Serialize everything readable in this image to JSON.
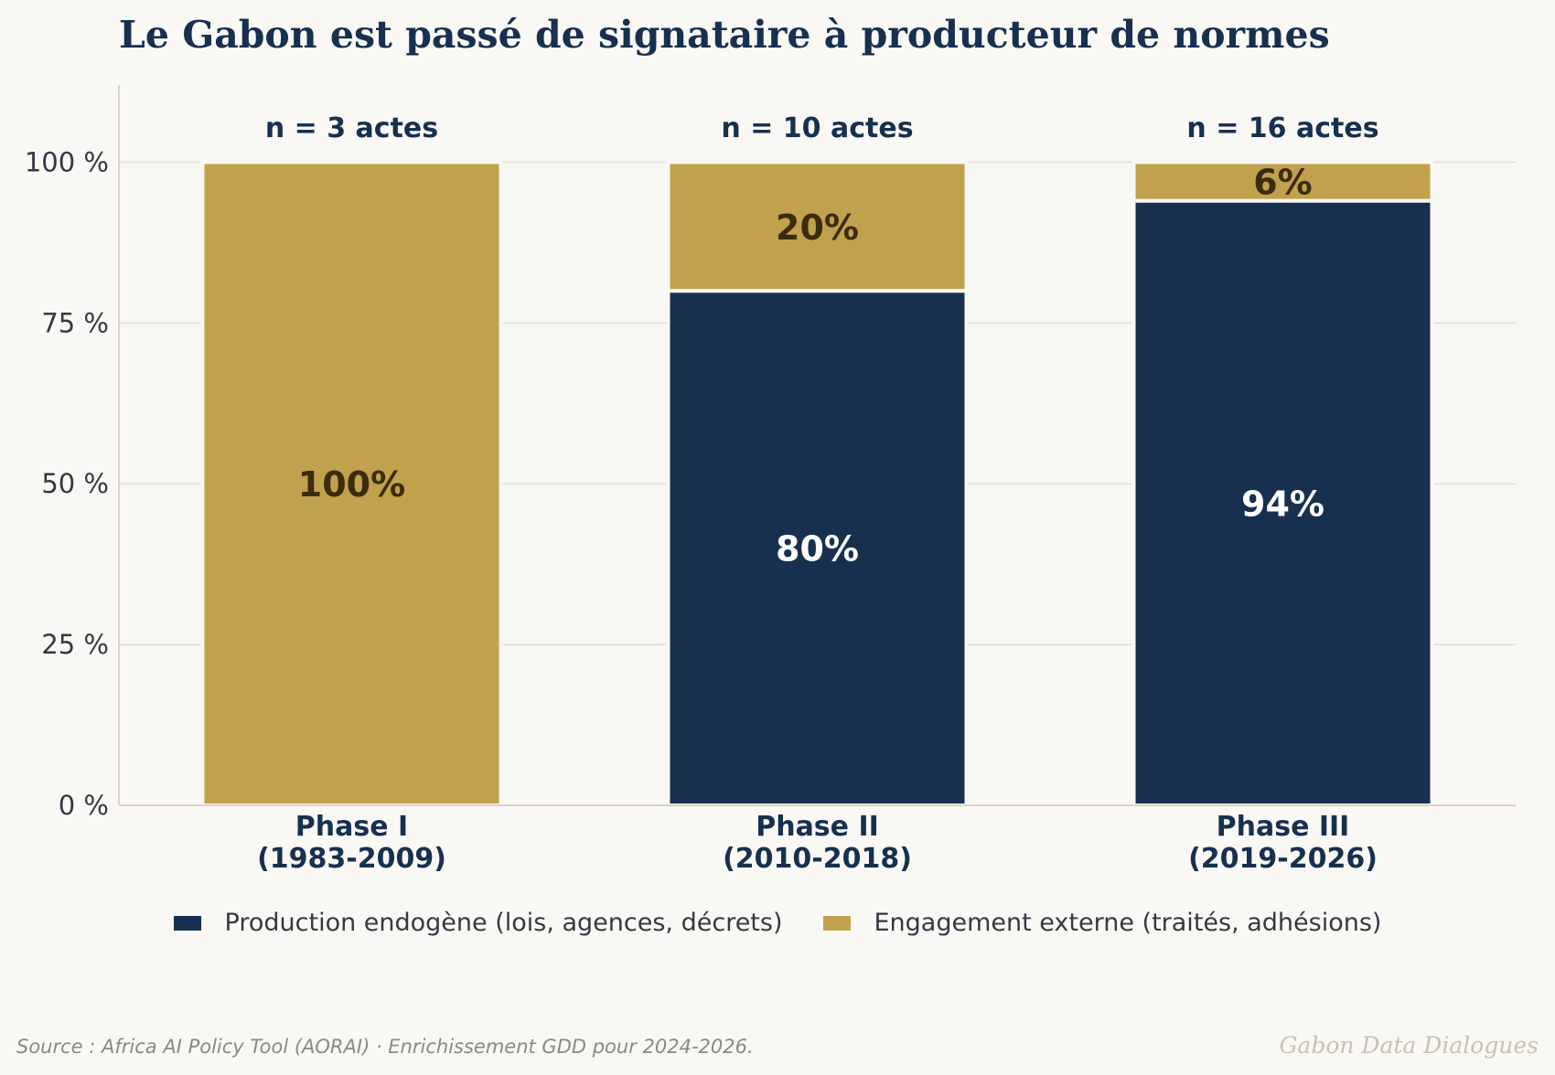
{
  "colors": {
    "background": "#f9f8f4",
    "endogene": "#17304f",
    "externe": "#c2a14e",
    "label_on_dark": "#ffffff",
    "label_on_gold": "#3b2c0c",
    "grid": "#e5e3dc",
    "axis": "#d9d4c2"
  },
  "footer": {
    "source": "Source : Africa AI Policy Tool (AORAI) · Enrichissement GDD pour 2024-2026.",
    "brand": "Gabon Data Dialogues"
  },
  "chart_data": {
    "type": "bar",
    "stacked": true,
    "title": "Le Gabon est passé de signataire à producteur de normes",
    "categories": [
      [
        "Phase I",
        "(1983-2009)"
      ],
      [
        "Phase II",
        "(2010-2018)"
      ],
      [
        "Phase III",
        "(2019-2026)"
      ]
    ],
    "counts": [
      "n = 3 actes",
      "n = 10 actes",
      "n = 16 actes"
    ],
    "series": [
      {
        "name": "Production endogène (lois, agences, décrets)",
        "color_key": "endogene",
        "values": [
          0,
          80,
          94
        ],
        "labels": [
          "",
          "80%",
          "94%"
        ]
      },
      {
        "name": "Engagement externe (traités, adhésions)",
        "color_key": "externe",
        "values": [
          100,
          20,
          6
        ],
        "labels": [
          "100%",
          "20%",
          "6%"
        ]
      }
    ],
    "yticks": [
      0,
      25,
      50,
      75,
      100
    ],
    "ytick_labels": [
      "0 %",
      "25 %",
      "50 %",
      "75 %",
      "100 %"
    ],
    "ylim": [
      0,
      112
    ],
    "grid": "horizontal",
    "legend": "bottom-center"
  }
}
